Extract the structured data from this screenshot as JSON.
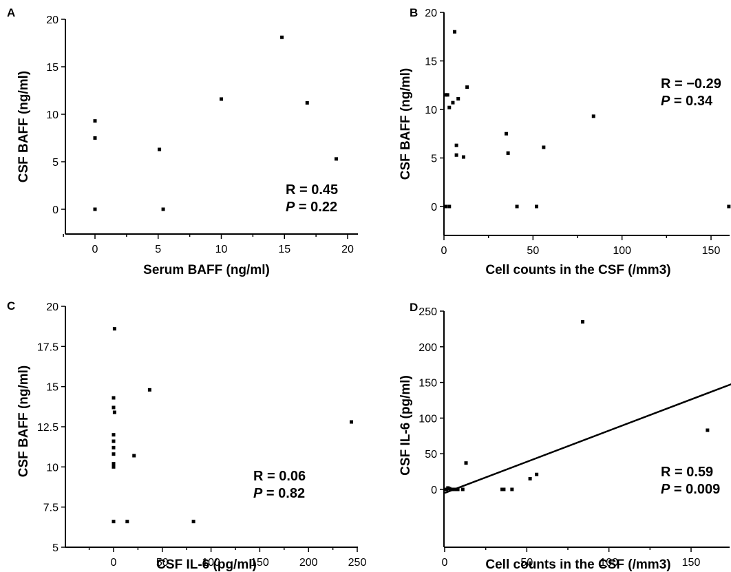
{
  "chart_data": [
    {
      "panel": "A",
      "type": "scatter",
      "xlabel": "Serum BAFF (ng/ml)",
      "ylabel": "CSF BAFF (ng/ml)",
      "xlim": [
        -3,
        20
      ],
      "ylim": [
        -2.5,
        20
      ],
      "xticks": [
        0,
        5,
        10,
        15,
        20
      ],
      "yticks": [
        0,
        5,
        10,
        15,
        20
      ],
      "ytick_labels": [
        "0",
        "5",
        "10",
        "15",
        "20"
      ],
      "minor_xticks": [
        -2.5,
        2.5,
        7.5,
        12.5,
        17.5
      ],
      "points": [
        {
          "x": 0,
          "y": 9.3
        },
        {
          "x": 0,
          "y": 7.5
        },
        {
          "x": 0,
          "y": 0
        },
        {
          "x": 5.1,
          "y": 6.3
        },
        {
          "x": 5.4,
          "y": 0
        },
        {
          "x": 10,
          "y": 11.6
        },
        {
          "x": 14.8,
          "y": 18.1
        },
        {
          "x": 16.8,
          "y": 11.2
        },
        {
          "x": 19.1,
          "y": 5.3
        }
      ],
      "stat_r": "R = 0.45",
      "stat_p_label": "P",
      "stat_p_value": " = 0.22"
    },
    {
      "panel": "B",
      "type": "scatter",
      "xlabel": "Cell counts in the CSF (/mm3)",
      "ylabel": "CSF BAFF (ng/ml)",
      "xlim": [
        0,
        165
      ],
      "ylim": [
        -2.5,
        20
      ],
      "xticks": [
        0,
        50,
        100,
        150
      ],
      "yticks": [
        0,
        5,
        10,
        15,
        20
      ],
      "ytick_labels": [
        "0",
        "5",
        "10",
        "15",
        "20"
      ],
      "minor_xticks": [
        25,
        75,
        125
      ],
      "points": [
        {
          "x": 1,
          "y": 11.5
        },
        {
          "x": 2,
          "y": 11.5
        },
        {
          "x": 3,
          "y": 10.2
        },
        {
          "x": 5,
          "y": 10.7
        },
        {
          "x": 6,
          "y": 18
        },
        {
          "x": 8,
          "y": 11.1
        },
        {
          "x": 7,
          "y": 6.3
        },
        {
          "x": 7,
          "y": 5.3
        },
        {
          "x": 11,
          "y": 5.1
        },
        {
          "x": 13,
          "y": 12.3
        },
        {
          "x": 35,
          "y": 7.5
        },
        {
          "x": 36,
          "y": 5.5
        },
        {
          "x": 56,
          "y": 6.1
        },
        {
          "x": 84,
          "y": 9.3
        },
        {
          "x": 1,
          "y": 0
        },
        {
          "x": 3,
          "y": 0
        },
        {
          "x": 41,
          "y": 0
        },
        {
          "x": 52,
          "y": 0
        },
        {
          "x": 160,
          "y": 0
        }
      ],
      "stat_r": "R = −0.29",
      "stat_p_label": "P",
      "stat_p_value": " = 0.34"
    },
    {
      "panel": "C",
      "type": "scatter",
      "xlabel": "CSF IL-6 (pg/ml)",
      "ylabel": "CSF BAFF (ng/ml)",
      "xlim": [
        -50,
        250
      ],
      "ylim": [
        5,
        20
      ],
      "xticks": [
        0,
        50,
        100,
        150,
        200,
        250
      ],
      "yticks": [
        5,
        7.5,
        10,
        12.5,
        15,
        17.5,
        20
      ],
      "ytick_labels": [
        "5",
        "7.5",
        "10",
        "12.5",
        "15",
        "17.5",
        "20"
      ],
      "minor_xticks": [
        -25,
        25,
        75,
        125,
        175,
        225
      ],
      "points": [
        {
          "x": 1,
          "y": 18.6
        },
        {
          "x": 0,
          "y": 14.3
        },
        {
          "x": 0,
          "y": 13.7
        },
        {
          "x": 1,
          "y": 13.4
        },
        {
          "x": 0,
          "y": 12
        },
        {
          "x": 0,
          "y": 11.6
        },
        {
          "x": 0,
          "y": 11.2
        },
        {
          "x": 0,
          "y": 10.8
        },
        {
          "x": 0,
          "y": 10.2
        },
        {
          "x": 0,
          "y": 10
        },
        {
          "x": 0,
          "y": 6.6
        },
        {
          "x": 14,
          "y": 6.6
        },
        {
          "x": 21,
          "y": 10.7
        },
        {
          "x": 37,
          "y": 14.8
        },
        {
          "x": 82,
          "y": 6.6
        },
        {
          "x": 244,
          "y": 12.8
        }
      ],
      "stat_r": "R = 0.06",
      "stat_p_label": "P",
      "stat_p_value": " = 0.82"
    },
    {
      "panel": "D",
      "type": "scatter",
      "xlabel": "Cell counts in the CSF (/mm3)",
      "ylabel": "CSF IL-6 (pg/ml)",
      "xlim": [
        0,
        175
      ],
      "ylim": [
        -30,
        250
      ],
      "xticks": [
        0,
        50,
        100,
        150
      ],
      "yticks": [
        0,
        50,
        100,
        150,
        200,
        250
      ],
      "ytick_labels": [
        "0",
        "50",
        "100",
        "150",
        "200",
        "250"
      ],
      "minor_xticks": [
        25,
        75,
        125
      ],
      "points": [
        {
          "x": 1,
          "y": 0
        },
        {
          "x": 2,
          "y": 2
        },
        {
          "x": 3,
          "y": 1
        },
        {
          "x": 5,
          "y": 0
        },
        {
          "x": 7,
          "y": 0
        },
        {
          "x": 8,
          "y": 0
        },
        {
          "x": 11,
          "y": 0
        },
        {
          "x": 13,
          "y": 37
        },
        {
          "x": 35,
          "y": 0
        },
        {
          "x": 36,
          "y": 0
        },
        {
          "x": 41,
          "y": 0
        },
        {
          "x": 52,
          "y": 15
        },
        {
          "x": 56,
          "y": 21
        },
        {
          "x": 84,
          "y": 235
        },
        {
          "x": 160,
          "y": 83
        }
      ],
      "fit_line": {
        "x": [
          0,
          175
        ],
        "y": [
          -5,
          148
        ]
      },
      "stat_r": "R = 0.59",
      "stat_p_label": "P",
      "stat_p_value": " = 0.009"
    }
  ]
}
